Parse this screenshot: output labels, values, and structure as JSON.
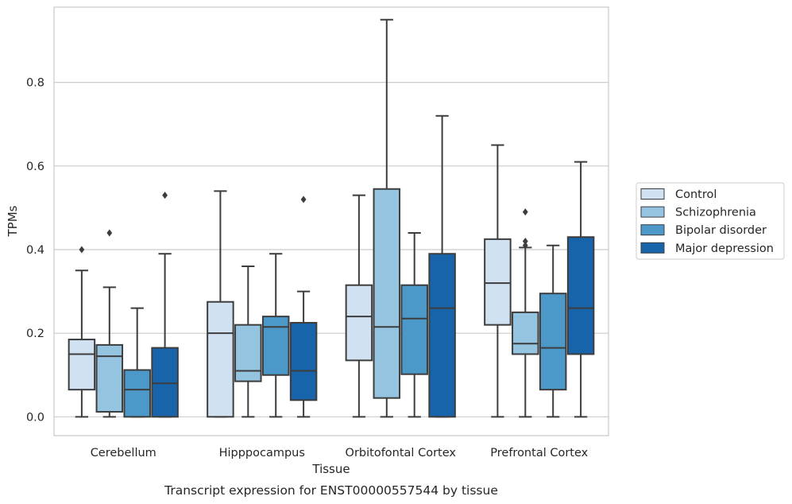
{
  "chart_data": {
    "type": "box",
    "xlabel": "Tissue",
    "ylabel": "TPMs",
    "caption": "Transcript expression for ENST00000557544 by tissue",
    "ylim": [
      -0.045,
      0.98
    ],
    "yticks": [
      "0.0",
      "0.2",
      "0.4",
      "0.6",
      "0.8"
    ],
    "ytick_values": [
      0.0,
      0.2,
      0.4,
      0.6,
      0.8
    ],
    "grid": true,
    "legend_position": "right",
    "categories": [
      "Cerebellum",
      "Hipppocampus",
      "Orbitofontal Cortex",
      "Prefrontal Cortex"
    ],
    "series": [
      {
        "name": "Control",
        "color": "#d0e1f2",
        "boxes": [
          {
            "whislo": 0.0,
            "q1": 0.065,
            "med": 0.15,
            "q3": 0.185,
            "whishi": 0.35,
            "fliers": [
              0.4
            ]
          },
          {
            "whislo": 0.0,
            "q1": 0.0,
            "med": 0.2,
            "q3": 0.275,
            "whishi": 0.54,
            "fliers": []
          },
          {
            "whislo": 0.0,
            "q1": 0.135,
            "med": 0.24,
            "q3": 0.315,
            "whishi": 0.53,
            "fliers": []
          },
          {
            "whislo": 0.0,
            "q1": 0.22,
            "med": 0.32,
            "q3": 0.425,
            "whishi": 0.65,
            "fliers": []
          }
        ]
      },
      {
        "name": "Schizophrenia",
        "color": "#94c4df",
        "boxes": [
          {
            "whislo": 0.0,
            "q1": 0.012,
            "med": 0.145,
            "q3": 0.172,
            "whishi": 0.31,
            "fliers": [
              0.44
            ]
          },
          {
            "whislo": 0.0,
            "q1": 0.085,
            "med": 0.11,
            "q3": 0.22,
            "whishi": 0.36,
            "fliers": []
          },
          {
            "whislo": 0.0,
            "q1": 0.045,
            "med": 0.215,
            "q3": 0.545,
            "whishi": 0.95,
            "fliers": []
          },
          {
            "whislo": 0.0,
            "q1": 0.15,
            "med": 0.175,
            "q3": 0.25,
            "whishi": 0.405,
            "fliers": [
              0.41,
              0.42,
              0.49
            ]
          }
        ]
      },
      {
        "name": "Bipolar disorder",
        "color": "#4b98c9",
        "boxes": [
          {
            "whislo": 0.0,
            "q1": 0.0,
            "med": 0.065,
            "q3": 0.112,
            "whishi": 0.26,
            "fliers": []
          },
          {
            "whislo": 0.0,
            "q1": 0.1,
            "med": 0.215,
            "q3": 0.24,
            "whishi": 0.39,
            "fliers": []
          },
          {
            "whislo": 0.0,
            "q1": 0.102,
            "med": 0.235,
            "q3": 0.315,
            "whishi": 0.44,
            "fliers": []
          },
          {
            "whislo": 0.0,
            "q1": 0.065,
            "med": 0.165,
            "q3": 0.295,
            "whishi": 0.41,
            "fliers": []
          }
        ]
      },
      {
        "name": "Major depression",
        "color": "#1764ab",
        "boxes": [
          {
            "whislo": 0.0,
            "q1": 0.0,
            "med": 0.08,
            "q3": 0.165,
            "whishi": 0.39,
            "fliers": [
              0.53
            ]
          },
          {
            "whislo": 0.0,
            "q1": 0.04,
            "med": 0.11,
            "q3": 0.225,
            "whishi": 0.3,
            "fliers": [
              0.52
            ]
          },
          {
            "whislo": 0.0,
            "q1": 0.0,
            "med": 0.26,
            "q3": 0.39,
            "whishi": 0.72,
            "fliers": []
          },
          {
            "whislo": 0.0,
            "q1": 0.15,
            "med": 0.26,
            "q3": 0.43,
            "whishi": 0.61,
            "fliers": []
          }
        ]
      }
    ]
  }
}
